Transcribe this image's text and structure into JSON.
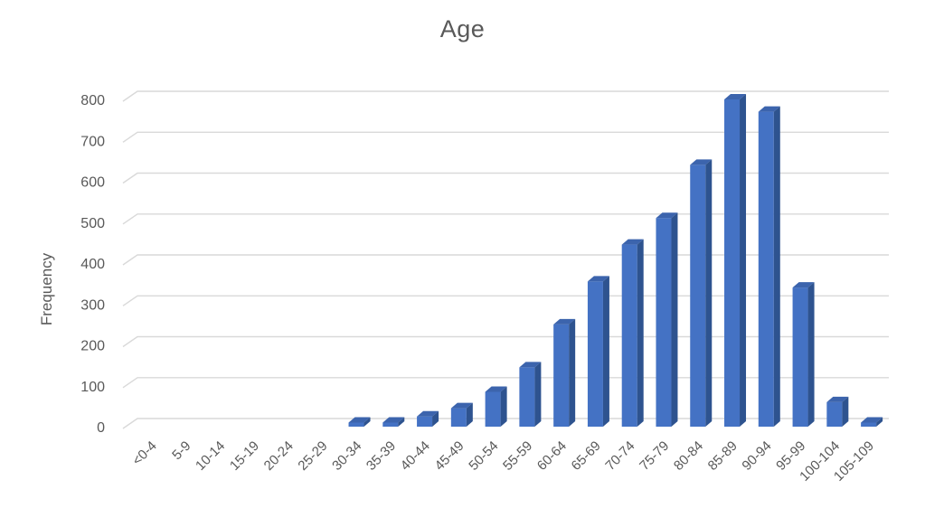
{
  "chart_data": {
    "type": "bar",
    "style": "3d-column",
    "title": "Age",
    "xlabel": "",
    "ylabel": "Frequency",
    "categories": [
      "<0-4",
      "5-9",
      "10-14",
      "15-19",
      "20-24",
      "25-29",
      "30-34",
      "35-39",
      "40-44",
      "45-49",
      "50-54",
      "55-59",
      "60-64",
      "65-69",
      "70-74",
      "75-79",
      "80-84",
      "85-89",
      "90-94",
      "95-99",
      "100-104",
      "105-109"
    ],
    "values": [
      0,
      0,
      0,
      0,
      0,
      0,
      10,
      10,
      25,
      45,
      85,
      145,
      250,
      355,
      445,
      510,
      640,
      800,
      770,
      340,
      60,
      10
    ],
    "ylim": [
      0,
      800
    ],
    "yticks": [
      0,
      100,
      200,
      300,
      400,
      500,
      600,
      700,
      800
    ],
    "grid": true,
    "legend": false,
    "colors": {
      "bar_front": "#4472C4",
      "bar_top": "#3C64AD",
      "bar_side": "#2E538F",
      "gridline": "#D9D9D9",
      "text": "#595959"
    }
  }
}
